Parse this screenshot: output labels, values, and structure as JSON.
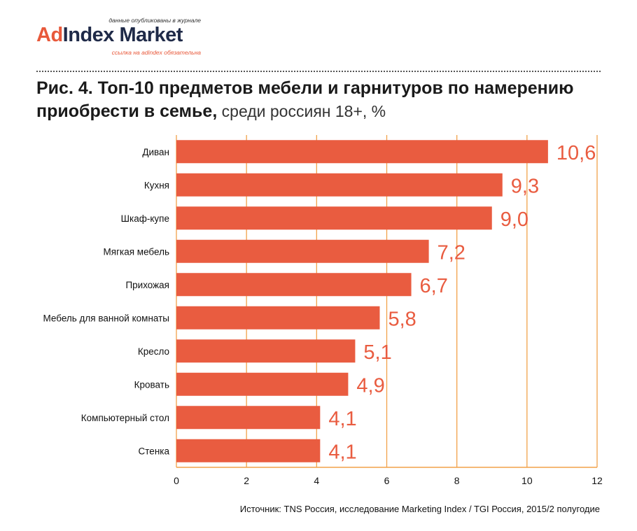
{
  "logo": {
    "tagline_top": "данные опубликованы в журнале",
    "brand_ad": "Ad",
    "brand_rest": "Index Market",
    "tagline_bottom": "ссылка на adindex обязательна"
  },
  "header": {
    "title_bold": "Рис. 4. Топ-10 предметов мебели и гарнитуров по намерению приобрести в семье,",
    "title_sub": " среди россиян 18+, %"
  },
  "source": "Источник: TNS Россия, исследование Marketing Index / TGI Россия, 2015/2 полугодие",
  "colors": {
    "bar": "#e95c40",
    "grid": "#f2a24a",
    "label": "#e95c40"
  },
  "chart_data": {
    "type": "bar",
    "orientation": "horizontal",
    "categories": [
      "Диван",
      "Кухня",
      "Шкаф-купе",
      "Мягкая мебель",
      "Прихожая",
      "Мебель для ванной комнаты",
      "Кресло",
      "Кровать",
      "Компьютерный стол",
      "Стенка"
    ],
    "values": [
      10.6,
      9.3,
      9.0,
      7.2,
      6.7,
      5.8,
      5.1,
      4.9,
      4.1,
      4.1
    ],
    "value_labels": [
      "10,6",
      "9,3",
      "9,0",
      "7,2",
      "6,7",
      "5,8",
      "5,1",
      "4,9",
      "4,1",
      "4,1"
    ],
    "xlim": [
      0,
      12
    ],
    "xticks": [
      "0",
      "2",
      "4",
      "6",
      "8",
      "10",
      "12"
    ],
    "grid": true
  }
}
